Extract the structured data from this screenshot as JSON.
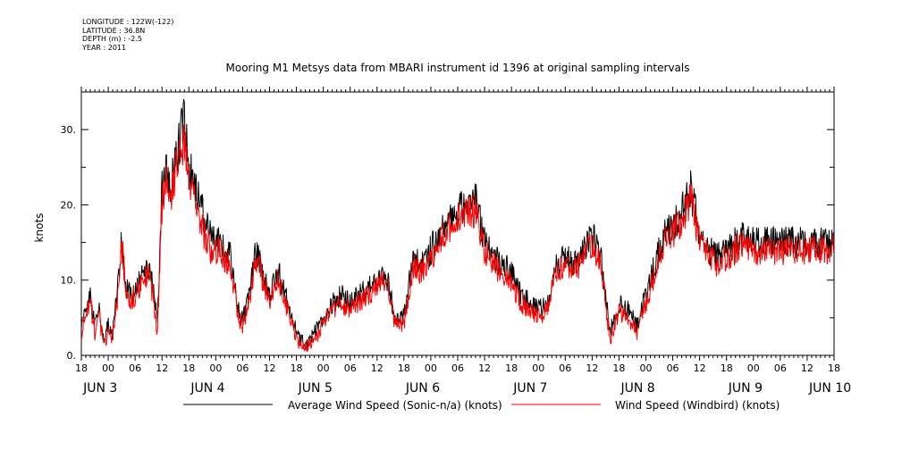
{
  "header": {
    "metadata": [
      "LONGITUDE : 122W(-122)",
      "LATITUDE : 36.8N",
      "DEPTH (m) : -2.5",
      "YEAR : 2011"
    ]
  },
  "chart_data": {
    "type": "line",
    "title": "Mooring M1 Metsys data from MBARI instrument id 1396 at original sampling intervals",
    "ylabel": "knots",
    "xlabel": "",
    "ylim": [
      0,
      35
    ],
    "yticks": [
      0,
      10,
      20,
      30
    ],
    "ytick_labels": [
      "0.",
      "10.",
      "20.",
      "30."
    ],
    "xlim_hours": [
      0,
      168
    ],
    "x_hour_ticks": [
      "18",
      "00",
      "06",
      "12",
      "18",
      "00",
      "06",
      "12",
      "18",
      "00",
      "06",
      "12",
      "18",
      "00",
      "06",
      "12",
      "18",
      "00",
      "06",
      "12",
      "18",
      "00",
      "06",
      "12",
      "18",
      "00",
      "06",
      "12",
      "18"
    ],
    "date_labels": [
      "JUN  3",
      "JUN  4",
      "JUN  5",
      "JUN  6",
      "JUN  7",
      "JUN  8",
      "JUN  9",
      "JUN 10"
    ],
    "legend_placement": "bottom",
    "x": [
      0,
      2,
      3,
      4,
      5,
      6,
      7,
      8,
      9,
      10,
      11,
      12,
      13,
      14,
      15,
      16,
      17,
      18,
      19,
      20,
      21,
      22,
      23,
      24,
      25,
      26,
      27,
      28,
      29,
      30,
      31,
      32,
      33,
      34,
      35,
      36,
      37,
      38,
      39,
      40,
      41,
      42,
      43,
      44,
      45,
      46,
      47,
      48,
      49,
      50,
      52,
      54,
      56,
      58,
      60,
      62,
      64,
      66,
      68,
      70,
      72,
      74,
      76,
      78,
      80,
      82,
      84,
      86,
      88,
      90,
      92,
      94,
      96,
      98,
      100,
      102,
      104,
      106,
      108,
      110,
      112,
      114,
      116,
      118,
      120,
      122,
      124,
      126,
      128,
      130,
      132,
      134,
      136,
      138,
      140,
      142,
      144,
      146,
      148,
      150,
      152,
      154,
      156,
      158,
      160,
      162,
      164,
      166,
      168
    ],
    "series": [
      {
        "name": "Average Wind Speed (Sonic-n/a) (knots)",
        "color": "#000000",
        "values": [
          4,
          8,
          4,
          6,
          2,
          4,
          3,
          8,
          16,
          9,
          8,
          8,
          10,
          11,
          12,
          9,
          4,
          22,
          25,
          22,
          26,
          29,
          32,
          25,
          23,
          21,
          19,
          17,
          16,
          15,
          16,
          13,
          14,
          10,
          6,
          5,
          7,
          10,
          14,
          12,
          10,
          8,
          10,
          11,
          9,
          7,
          5,
          3,
          2,
          1.5,
          3,
          5,
          7,
          8,
          7,
          8,
          9,
          10,
          11,
          5,
          5,
          13,
          12,
          14,
          16,
          18,
          19,
          20,
          21,
          15,
          13,
          12,
          11,
          8,
          7,
          6,
          7,
          12,
          13,
          12,
          14,
          16,
          13,
          3,
          7,
          6,
          4,
          8,
          12,
          16,
          17,
          19,
          22,
          16,
          14,
          13,
          14,
          15,
          16,
          15,
          15,
          15,
          15,
          15,
          15,
          15,
          15,
          15,
          15
        ]
      },
      {
        "name": "Wind Speed (Windbird) (knots)",
        "color": "#ff0000",
        "values": [
          3,
          7,
          3,
          5,
          1.5,
          3,
          2.5,
          7,
          15,
          8,
          7,
          8,
          9,
          10,
          11,
          8,
          3,
          20,
          23,
          20,
          25,
          27,
          29,
          23,
          21,
          19,
          17,
          15,
          14,
          14,
          15,
          12,
          13,
          9,
          5,
          4,
          6,
          9,
          13,
          11,
          9,
          7,
          9,
          10,
          8,
          6,
          4,
          2,
          1,
          1,
          2,
          4,
          6,
          7,
          6,
          7,
          8,
          9,
          10,
          4,
          4,
          12,
          11,
          13,
          15,
          17,
          18,
          19,
          19,
          14,
          12,
          11,
          10,
          7,
          6,
          5,
          6,
          11,
          12,
          11,
          13,
          15,
          12,
          2,
          6,
          5,
          3,
          7,
          11,
          15,
          16,
          18,
          21,
          15,
          13,
          12,
          13,
          14,
          15,
          14,
          14,
          14,
          14,
          14,
          14,
          14,
          14,
          14,
          14
        ]
      }
    ]
  }
}
